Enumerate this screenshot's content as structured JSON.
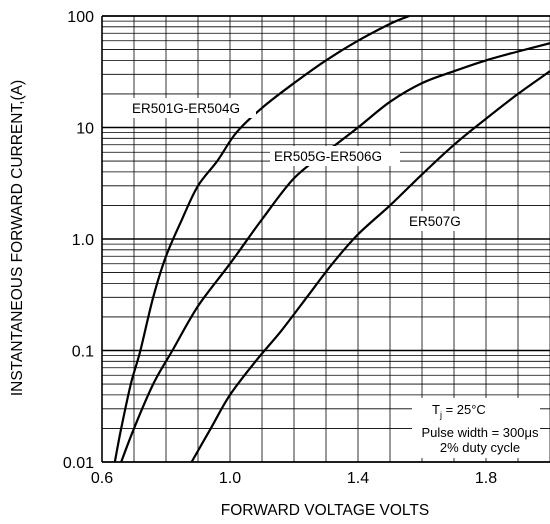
{
  "chart_data": {
    "type": "line",
    "xlabel": "FORWARD VOLTAGE VOLTS",
    "ylabel": "INSTANTANEOUS FORWARD CURRENT,(A)",
    "xlim": [
      0.6,
      2.0
    ],
    "ylim": [
      0.01,
      100
    ],
    "yscale": "log",
    "x_ticks": [
      "0.6",
      "1.0",
      "1.4",
      "1.8"
    ],
    "y_ticks": [
      "0.01",
      "0.1",
      "1.0",
      "10",
      "100"
    ],
    "grid": true,
    "series": [
      {
        "name": "ER501G-ER504G",
        "x": [
          0.64,
          0.66,
          0.69,
          0.72,
          0.76,
          0.8,
          0.85,
          0.9,
          0.96,
          1.02,
          1.1,
          1.2,
          1.3,
          1.4,
          1.5,
          1.56
        ],
        "y": [
          0.01,
          0.02,
          0.05,
          0.1,
          0.3,
          0.7,
          1.5,
          3,
          5,
          9,
          15,
          25,
          40,
          60,
          85,
          100
        ]
      },
      {
        "name": "ER505G-ER506G",
        "x": [
          0.66,
          0.7,
          0.76,
          0.82,
          0.9,
          1.0,
          1.1,
          1.2,
          1.3,
          1.4,
          1.5,
          1.6,
          1.7,
          1.8,
          1.9,
          2.0
        ],
        "y": [
          0.01,
          0.02,
          0.05,
          0.1,
          0.25,
          0.6,
          1.5,
          3.5,
          6,
          10,
          17,
          25,
          32,
          40,
          48,
          57
        ]
      },
      {
        "name": "ER507G",
        "x": [
          0.88,
          0.94,
          1.0,
          1.08,
          1.16,
          1.24,
          1.32,
          1.4,
          1.5,
          1.6,
          1.7,
          1.8,
          1.9,
          2.0
        ],
        "y": [
          0.01,
          0.02,
          0.04,
          0.08,
          0.15,
          0.3,
          0.6,
          1.1,
          2,
          3.8,
          7,
          12,
          20,
          32
        ]
      }
    ],
    "annotations": {
      "condition_line1": "T",
      "condition_sub": "j",
      "condition_line1_rest": " = 25°C",
      "condition_line2": "Pulse width = 300μs",
      "condition_line3": "2% duty cycle"
    }
  }
}
